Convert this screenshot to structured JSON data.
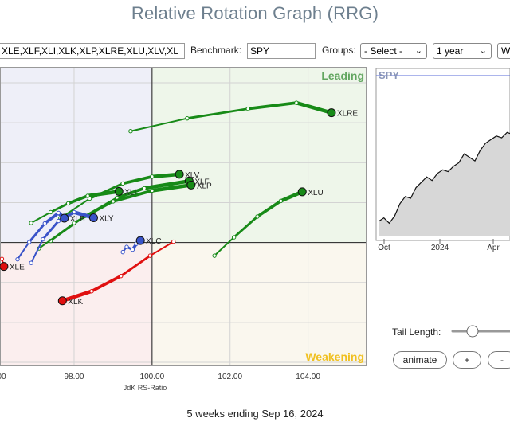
{
  "page": {
    "title": "Relative Rotation Graph (RRG)",
    "footer": "5 weeks ending Sep 16, 2024"
  },
  "controls": {
    "symbols_value": "XLE,XLF,XLI,XLK,XLP,XLRE,XLU,XLV,XL",
    "benchmark_label": "Benchmark:",
    "benchmark_value": "SPY",
    "groups_label": "Groups:",
    "groups_value": "- Select -",
    "period_value": "1 year",
    "frequency_value": "W",
    "tail_length_label": "Tail Length:",
    "tail_length_value": 0.3,
    "animate_label": "animate",
    "plus_label": "+",
    "minus_label": "-"
  },
  "colors": {
    "leading_fill": "#eef6ea",
    "weakening_fill": "#faf7ee",
    "lagging_fill": "#fbeeee",
    "improving_fill": "#eeeff8",
    "leading_text": "#62a660",
    "weakening_text": "#f0c020",
    "green": "#178a17",
    "blue": "#3953c9",
    "red": "#e01010",
    "spy_line": "#111111",
    "spy_fill": "#d7d7d7"
  },
  "chart_data": [
    {
      "type": "scatter",
      "subtype": "relative-rotation-graph",
      "xlabel": "JdK RS-Ratio",
      "x_ticks": [
        "98.00",
        "100.00",
        "102.00",
        "104.00"
      ],
      "xlim": [
        96.1,
        105.5
      ],
      "ylim": [
        96.9,
        104.4
      ],
      "quadrants": {
        "leading": "Leading",
        "weakening": "Weakening"
      },
      "series": [
        {
          "name": "XLRE",
          "color": "green",
          "points": [
            [
              99.45,
              102.79
            ],
            [
              100.9,
              103.11
            ],
            [
              102.46,
              103.35
            ],
            [
              103.7,
              103.5
            ],
            [
              104.6,
              103.25
            ]
          ]
        },
        {
          "name": "XLV",
          "color": "green",
          "points": [
            [
              97.65,
              100.61
            ],
            [
              98.4,
              101.1
            ],
            [
              99.25,
              101.48
            ],
            [
              100.0,
              101.65
            ],
            [
              100.7,
              101.71
            ]
          ]
        },
        {
          "name": "XLF",
          "color": "green",
          "points": [
            [
              97.4,
              100.04
            ],
            [
              98.3,
              100.67
            ],
            [
              99.1,
              101.12
            ],
            [
              99.8,
              101.36
            ],
            [
              100.95,
              101.54
            ]
          ]
        },
        {
          "name": "XLP",
          "color": "green",
          "points": [
            [
              97.1,
              99.85
            ],
            [
              98.0,
              100.49
            ],
            [
              99.0,
              101.03
            ],
            [
              100.0,
              101.3
            ],
            [
              101.0,
              101.44
            ]
          ]
        },
        {
          "name": "XLU",
          "color": "green",
          "points": [
            [
              101.6,
              99.67
            ],
            [
              102.1,
              100.13
            ],
            [
              102.7,
              100.65
            ],
            [
              103.3,
              101.04
            ],
            [
              103.85,
              101.27
            ]
          ]
        },
        {
          "name": "XLI",
          "color": "green",
          "points": [
            [
              96.9,
              100.49
            ],
            [
              97.4,
              100.76
            ],
            [
              97.85,
              100.98
            ],
            [
              98.35,
              101.17
            ],
            [
              99.15,
              101.28
            ]
          ]
        },
        {
          "name": "XLY",
          "color": "blue",
          "points": [
            [
              96.9,
              99.49
            ],
            [
              97.2,
              100.08
            ],
            [
              97.6,
              100.54
            ],
            [
              98.0,
              100.76
            ],
            [
              98.5,
              100.62
            ]
          ]
        },
        {
          "name": "XLB",
          "color": "blue",
          "points": [
            [
              96.55,
              99.58
            ],
            [
              96.85,
              100.01
            ],
            [
              97.25,
              100.48
            ],
            [
              97.6,
              100.74
            ],
            [
              97.75,
              100.61
            ]
          ]
        },
        {
          "name": "XLC",
          "color": "blue",
          "points": [
            [
              99.25,
              99.76
            ],
            [
              99.35,
              99.89
            ],
            [
              99.5,
              99.82
            ],
            [
              99.6,
              99.97
            ],
            [
              99.7,
              100.05
            ]
          ]
        },
        {
          "name": "XLK",
          "color": "red",
          "points": [
            [
              100.55,
              100.02
            ],
            [
              99.95,
              99.67
            ],
            [
              99.2,
              99.16
            ],
            [
              98.45,
              98.78
            ],
            [
              97.7,
              98.54
            ]
          ]
        },
        {
          "name": "XLE",
          "color": "red",
          "points": [
            [
              96.15,
              99.59
            ],
            [
              96.2,
              99.4
            ]
          ]
        }
      ]
    },
    {
      "type": "area",
      "title": "SPY",
      "x_ticks": [
        "Oct",
        "2024",
        "Apr"
      ],
      "values": [
        100,
        102,
        99,
        103,
        110,
        114,
        113,
        119,
        122,
        125,
        123,
        127,
        129,
        128,
        131,
        133,
        138,
        136,
        134,
        140,
        144,
        146,
        148,
        147,
        150,
        149,
        145,
        140
      ]
    }
  ]
}
